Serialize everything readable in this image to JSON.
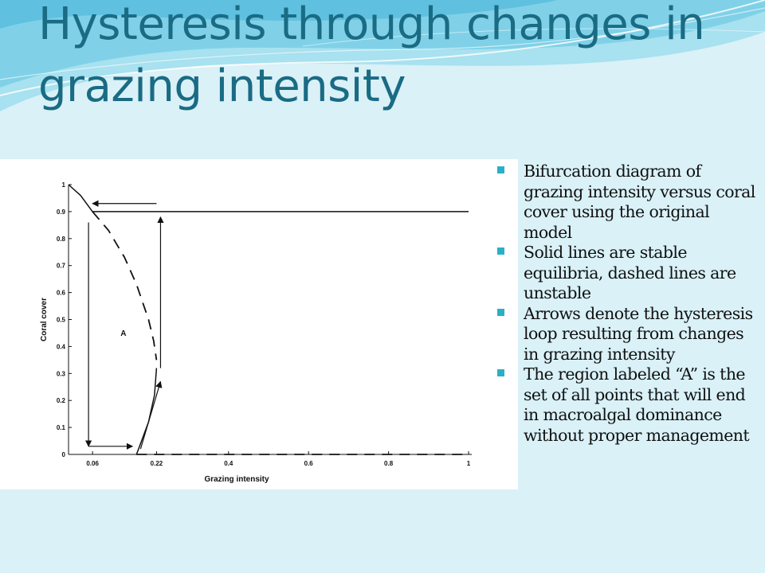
{
  "slide": {
    "title": "Hysteresis through changes in grazing intensity",
    "colors": {
      "background": "#d9f1f7",
      "title": "#1a6b84",
      "bullet_marker": "#2ab0c6"
    },
    "bullets": [
      "Bifurcation diagram of grazing intensity versus coral cover using the original model",
      "Solid lines are stable equilibria, dashed lines are unstable",
      "Arrows denote the hysteresis loop resulting from changes in grazing intensity",
      "The region labeled “A” is the set of all points that will end in macroalgal dominance without proper management"
    ]
  },
  "chart_data": {
    "type": "line",
    "title": "",
    "xlabel": "Grazing intensity",
    "ylabel": "Coral cover",
    "xlim": [
      0.0,
      1.0
    ],
    "ylim": [
      0,
      1
    ],
    "x_ticks": [
      "0.06",
      "0.22",
      "0.4",
      "0.6",
      "0.8",
      "1"
    ],
    "x_tick_values": [
      0.06,
      0.22,
      0.4,
      0.6,
      0.8,
      1.0
    ],
    "y_ticks": [
      "0",
      "0.1",
      "0.2",
      "0.3",
      "0.4",
      "0.5",
      "0.6",
      "0.7",
      "0.8",
      "0.9",
      "1"
    ],
    "y_tick_values": [
      0,
      0.1,
      0.2,
      0.3,
      0.4,
      0.5,
      0.6,
      0.7,
      0.8,
      0.9,
      1.0
    ],
    "grid": false,
    "series": [
      {
        "style": "solid",
        "stability": "stable",
        "x": [
          0.0,
          0.03,
          0.06
        ],
        "y": [
          1.0,
          0.96,
          0.9
        ]
      },
      {
        "style": "solid",
        "stability": "stable",
        "x": [
          0.06,
          1.0
        ],
        "y": [
          0.9,
          0.9
        ]
      },
      {
        "style": "dashed",
        "stability": "unstable",
        "x": [
          0.06,
          0.1,
          0.14,
          0.17,
          0.2,
          0.213,
          0.22
        ],
        "y": [
          0.9,
          0.83,
          0.73,
          0.63,
          0.5,
          0.42,
          0.35
        ]
      },
      {
        "style": "solid",
        "stability": "stable",
        "x": [
          0.22,
          0.215,
          0.2,
          0.18,
          0.17
        ],
        "y": [
          0.32,
          0.22,
          0.12,
          0.04,
          0.0
        ]
      },
      {
        "style": "dashed",
        "stability": "unstable",
        "x": [
          0.17,
          1.0
        ],
        "y": [
          0.0,
          0.0
        ]
      }
    ],
    "arrows": [
      {
        "from": [
          0.22,
          0.93
        ],
        "to": [
          0.06,
          0.93
        ]
      },
      {
        "from": [
          0.05,
          0.86
        ],
        "to": [
          0.05,
          0.03
        ]
      },
      {
        "from": [
          0.05,
          0.03
        ],
        "to": [
          0.16,
          0.03
        ]
      },
      {
        "from": [
          0.18,
          0.02
        ],
        "to": [
          0.23,
          0.27
        ]
      },
      {
        "from": [
          0.23,
          0.32
        ],
        "to": [
          0.23,
          0.88
        ]
      }
    ],
    "annotations": [
      {
        "text": "A",
        "x": 0.13,
        "y": 0.44
      }
    ]
  }
}
